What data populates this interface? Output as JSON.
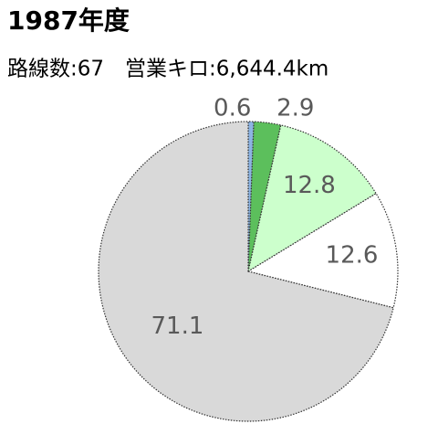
{
  "chart_data": {
    "type": "pie",
    "title": "1987年度",
    "subtitle": "路線数:67　営業キロ:6,644.4km",
    "categories": [
      null,
      null,
      null,
      null,
      null
    ],
    "values": [
      0.6,
      2.9,
      12.8,
      12.6,
      71.1
    ],
    "colors": [
      "#8db4e2",
      "#5cbf5c",
      "#ccffcc",
      "#ffffff",
      "#d9d9d9"
    ]
  }
}
